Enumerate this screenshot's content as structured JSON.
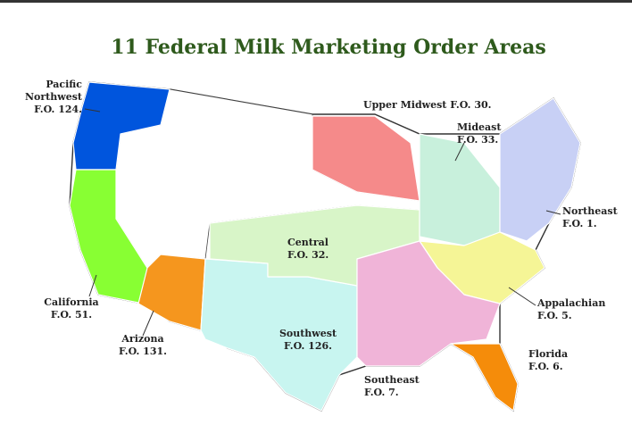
{
  "title": "11 Federal Milk Marketing Order Areas",
  "regions": [
    {
      "lines": [
        "Pacific",
        "Northwest",
        "F.O. 124."
      ]
    },
    {
      "lines": [
        "Upper Midwest F.O. 30."
      ]
    },
    {
      "lines": [
        "Mideast",
        "F.O. 33."
      ]
    },
    {
      "lines": [
        "Northeast",
        "F.O. 1."
      ]
    },
    {
      "lines": [
        "Central",
        "F.O. 32."
      ]
    },
    {
      "lines": [
        "California",
        "F.O. 51."
      ]
    },
    {
      "lines": [
        "Arizona",
        "F.O. 131."
      ]
    },
    {
      "lines": [
        "Southwest",
        "F.O. 126."
      ]
    },
    {
      "lines": [
        "Appalachian",
        "F.O. 5."
      ]
    },
    {
      "lines": [
        "Florida",
        "F.O. 6."
      ]
    },
    {
      "lines": [
        "Southeast",
        "F.O. 7."
      ]
    }
  ]
}
